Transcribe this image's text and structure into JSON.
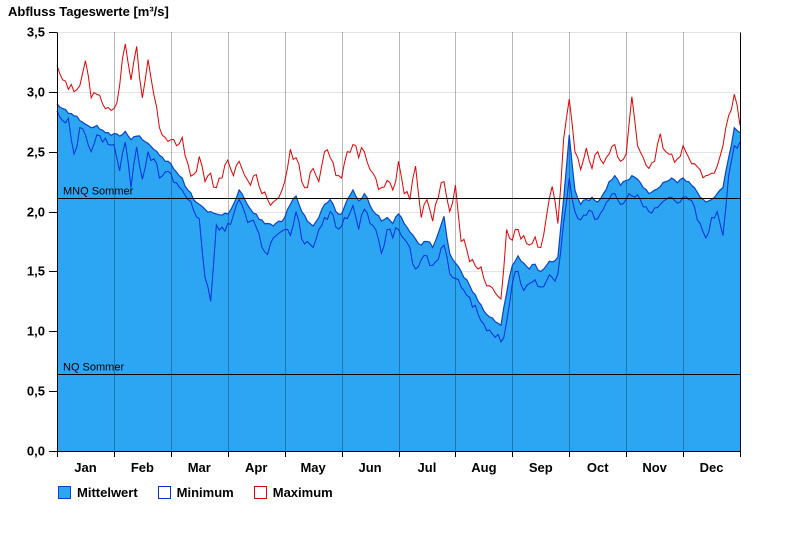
{
  "page": {
    "background": "#FFFFFF"
  },
  "chart_data": {
    "type": "area",
    "title": "Abfluss Tageswerte [m³/s]",
    "x_months": [
      "Jan",
      "Feb",
      "Mar",
      "Apr",
      "May",
      "Jun",
      "Jul",
      "Aug",
      "Sep",
      "Oct",
      "Nov",
      "Dec"
    ],
    "x_range_months": [
      0,
      12
    ],
    "points_per_month": 10,
    "ylim": [
      0,
      3.5
    ],
    "ytick_step": 0.5,
    "ytick_labels": [
      "0,0",
      "0,5",
      "1,0",
      "1,5",
      "2,0",
      "2,5",
      "3,0",
      "3,5"
    ],
    "grid": {
      "horizontal": true,
      "vertical_months": true
    },
    "legend_position": "bottom-left",
    "reference_lines": [
      {
        "label": "MNQ Sommer",
        "value": 2.11
      },
      {
        "label": "NQ Sommer",
        "value": 0.64
      }
    ],
    "series": [
      {
        "name": "Mittelwert",
        "type": "area",
        "fill_color": "#2CA5F2",
        "line_color": "#0A44CC",
        "values": [
          2.9,
          2.86,
          2.82,
          2.8,
          2.76,
          2.73,
          2.7,
          2.72,
          2.68,
          2.66,
          2.65,
          2.63,
          2.67,
          2.6,
          2.63,
          2.6,
          2.57,
          2.52,
          2.47,
          2.42,
          2.4,
          2.33,
          2.28,
          2.18,
          2.1,
          2.06,
          2.02,
          2.0,
          1.98,
          1.97,
          1.98,
          2.06,
          2.18,
          2.1,
          2.02,
          1.98,
          1.93,
          1.9,
          1.88,
          1.92,
          1.95,
          2.06,
          2.13,
          2.0,
          1.92,
          1.88,
          1.95,
          2.06,
          2.1,
          2.0,
          1.98,
          2.1,
          2.18,
          2.09,
          2.15,
          2.05,
          1.98,
          1.92,
          1.95,
          1.9,
          1.98,
          1.9,
          1.83,
          1.77,
          1.72,
          1.75,
          1.7,
          1.82,
          1.96,
          1.65,
          1.57,
          1.5,
          1.43,
          1.33,
          1.25,
          1.17,
          1.12,
          1.08,
          1.05,
          1.32,
          1.55,
          1.63,
          1.57,
          1.52,
          1.56,
          1.5,
          1.55,
          1.58,
          1.62,
          2.1,
          2.64,
          2.18,
          2.06,
          2.1,
          2.12,
          2.08,
          2.15,
          2.25,
          2.3,
          2.22,
          2.26,
          2.3,
          2.27,
          2.2,
          2.15,
          2.18,
          2.21,
          2.25,
          2.28,
          2.24,
          2.28,
          2.25,
          2.2,
          2.12,
          2.08,
          2.1,
          2.15,
          2.2,
          2.45,
          2.7,
          2.66
        ]
      },
      {
        "name": "Minimum",
        "type": "line",
        "fill_color": "#FFFFFF",
        "line_color": "#0030DD",
        "values": [
          2.84,
          2.76,
          2.78,
          2.48,
          2.7,
          2.64,
          2.5,
          2.64,
          2.58,
          2.56,
          2.56,
          2.34,
          2.58,
          2.2,
          2.54,
          2.27,
          2.5,
          2.44,
          2.28,
          2.33,
          2.32,
          2.24,
          2.18,
          2.1,
          2.01,
          1.94,
          1.45,
          1.25,
          1.89,
          1.87,
          1.9,
          1.97,
          2.1,
          1.99,
          1.92,
          1.87,
          1.7,
          1.64,
          1.78,
          1.82,
          1.85,
          1.8,
          2.0,
          1.77,
          1.75,
          1.7,
          1.85,
          1.95,
          2.0,
          1.87,
          1.88,
          1.94,
          2.05,
          1.85,
          2.02,
          1.9,
          1.85,
          1.65,
          1.85,
          1.78,
          1.85,
          1.77,
          1.7,
          1.52,
          1.6,
          1.63,
          1.55,
          1.6,
          1.72,
          1.48,
          1.44,
          1.37,
          1.3,
          1.2,
          1.14,
          1.06,
          1.01,
          0.95,
          0.91,
          1.08,
          1.4,
          1.5,
          1.34,
          1.4,
          1.43,
          1.37,
          1.42,
          1.45,
          1.48,
          1.9,
          2.28,
          2.0,
          1.93,
          1.97,
          2.0,
          1.94,
          2.02,
          2.1,
          2.15,
          2.06,
          2.1,
          2.13,
          2.14,
          2.04,
          2.0,
          2.03,
          2.06,
          2.1,
          2.12,
          2.07,
          2.12,
          2.1,
          2.04,
          1.9,
          1.78,
          1.95,
          2.0,
          1.8,
          2.3,
          2.55,
          2.58
        ]
      },
      {
        "name": "Maximum",
        "type": "line",
        "fill_color": "#FFFFFF",
        "line_color": "#E60000",
        "values": [
          3.22,
          3.1,
          3.02,
          3.0,
          3.05,
          3.26,
          2.95,
          2.98,
          2.9,
          2.87,
          2.86,
          3.05,
          3.4,
          3.1,
          3.38,
          2.95,
          3.27,
          2.98,
          2.7,
          2.62,
          2.6,
          2.55,
          2.62,
          2.4,
          2.31,
          2.46,
          2.25,
          2.32,
          2.2,
          2.28,
          2.43,
          2.3,
          2.42,
          2.3,
          2.22,
          2.31,
          2.15,
          2.1,
          2.08,
          2.12,
          2.25,
          2.52,
          2.45,
          2.25,
          2.2,
          2.36,
          2.25,
          2.5,
          2.45,
          2.3,
          2.28,
          2.5,
          2.56,
          2.45,
          2.5,
          2.35,
          2.28,
          2.2,
          2.26,
          2.18,
          2.42,
          2.15,
          2.1,
          2.38,
          1.95,
          2.1,
          1.92,
          2.12,
          2.25,
          2.0,
          2.22,
          1.75,
          1.68,
          1.6,
          1.52,
          1.44,
          1.38,
          1.32,
          1.27,
          1.85,
          1.76,
          1.85,
          1.8,
          1.72,
          1.79,
          1.7,
          1.96,
          2.21,
          1.9,
          2.6,
          2.94,
          2.5,
          2.35,
          2.53,
          2.36,
          2.5,
          2.4,
          2.48,
          2.56,
          2.42,
          2.48,
          2.96,
          2.55,
          2.45,
          2.36,
          2.42,
          2.65,
          2.5,
          2.48,
          2.44,
          2.55,
          2.45,
          2.4,
          2.35,
          2.3,
          2.32,
          2.38,
          2.55,
          2.8,
          2.98,
          2.72
        ]
      }
    ]
  }
}
